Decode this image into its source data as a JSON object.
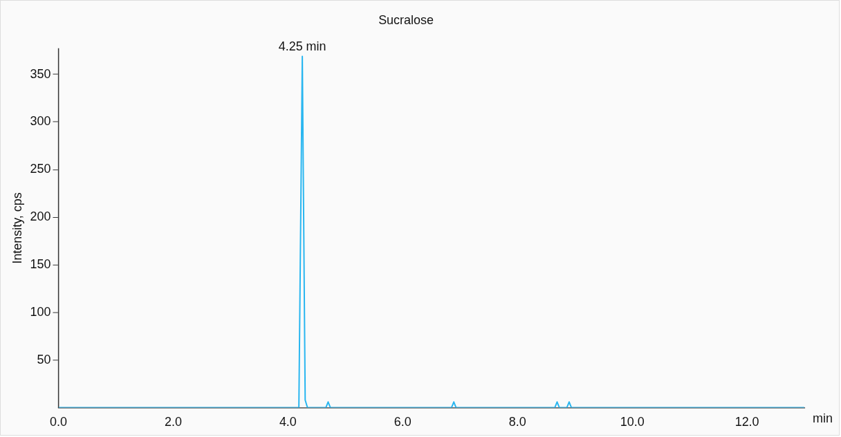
{
  "chart_data": {
    "type": "line",
    "title": "Sucralose",
    "xlabel": "min",
    "ylabel": "Intensity, cps",
    "x": [
      0,
      4.19,
      4.25,
      4.3,
      4.34,
      4.66,
      4.7,
      4.74,
      6.85,
      6.89,
      6.93,
      8.65,
      8.69,
      8.73,
      8.86,
      8.9,
      8.94,
      13
    ],
    "series": [
      {
        "color": "#29b6f0",
        "values": [
          0,
          0,
          369,
          8,
          0,
          0,
          6,
          0,
          0,
          6,
          0,
          0,
          6,
          0,
          0,
          6,
          0,
          0
        ]
      }
    ],
    "xlim": [
      0,
      13
    ],
    "xticks": [
      {
        "value": 0,
        "label": "0.0"
      },
      {
        "value": 2,
        "label": "2.0"
      },
      {
        "value": 4,
        "label": "4.0"
      },
      {
        "value": 6,
        "label": "6.0"
      },
      {
        "value": 8,
        "label": "8.0"
      },
      {
        "value": 10,
        "label": "10.0"
      },
      {
        "value": 12,
        "label": "12.0"
      }
    ],
    "ylim": [
      0,
      377
    ],
    "yticks": [
      50,
      100,
      150,
      200,
      250,
      300,
      350
    ],
    "annotations": [
      {
        "text": "4.25 min",
        "x": 4.25,
        "y": 369
      }
    ],
    "grid": false,
    "legend": false,
    "marker": "none",
    "line_style": "solid"
  }
}
